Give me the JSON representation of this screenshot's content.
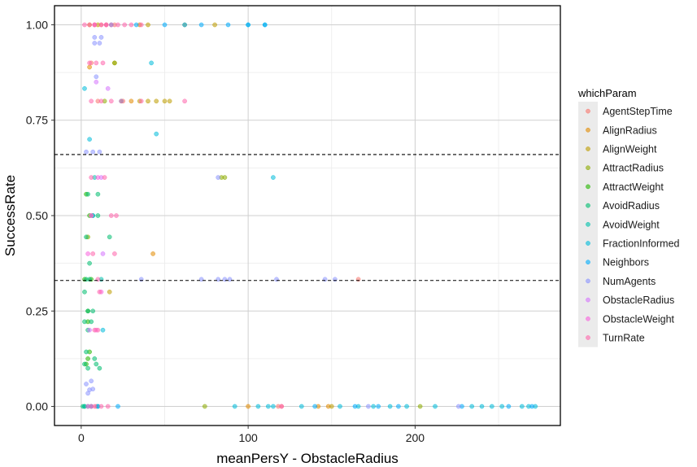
{
  "chart_data": {
    "type": "scatter",
    "xlabel": "meanPersY - ObstacleRadius",
    "ylabel": "SuccessRate",
    "xlim": [
      -16,
      287
    ],
    "ylim": [
      -0.05,
      1.05
    ],
    "x_ticks": [
      0,
      100,
      200
    ],
    "x_tick_labels": [
      "0",
      "100",
      "200"
    ],
    "y_ticks": [
      0,
      0.25,
      0.5,
      0.75,
      1
    ],
    "y_tick_labels": [
      "0.00",
      "0.25",
      "0.50",
      "0.75",
      "1.00"
    ],
    "grid": true,
    "hlines": [
      0.66,
      0.33
    ],
    "hline_style": "dashed",
    "point_opacity": 0.55,
    "legend": {
      "title": "whichParam",
      "position": "right",
      "entries": [
        {
          "name": "AgentStepTime",
          "color": "#F8766D"
        },
        {
          "name": "AlignRadius",
          "color": "#E18A00"
        },
        {
          "name": "AlignWeight",
          "color": "#BE9C00"
        },
        {
          "name": "AttractRadius",
          "color": "#8CAB00"
        },
        {
          "name": "AttractWeight",
          "color": "#24B700"
        },
        {
          "name": "AvoidRadius",
          "color": "#00BE70"
        },
        {
          "name": "AvoidWeight",
          "color": "#00C1AB"
        },
        {
          "name": "FractionInformed",
          "color": "#00BBDA"
        },
        {
          "name": "Neighbors",
          "color": "#00ACFC"
        },
        {
          "name": "NumAgents",
          "color": "#8B93FF"
        },
        {
          "name": "ObstacleRadius",
          "color": "#D575FE"
        },
        {
          "name": "ObstacleWeight",
          "color": "#F962DD"
        },
        {
          "name": "TurnRate",
          "color": "#FF65AC"
        }
      ]
    },
    "series": [
      {
        "name": "AgentStepTime",
        "points": [
          [
            8,
            1.0
          ],
          [
            12,
            1.0
          ],
          [
            20,
            1.0
          ],
          [
            6,
            0.9
          ],
          [
            10,
            0.8
          ],
          [
            25,
            0.8
          ],
          [
            166,
            0.333
          ],
          [
            118,
            0.0
          ],
          [
            120,
            0.0
          ],
          [
            6,
            0.0
          ],
          [
            9,
            0.0
          ]
        ]
      },
      {
        "name": "AlignRadius",
        "points": [
          [
            5,
            1.0
          ],
          [
            15,
            1.0
          ],
          [
            35,
            1.0
          ],
          [
            5,
            0.889
          ],
          [
            30,
            0.8
          ],
          [
            43,
            0.4
          ],
          [
            148,
            0.0
          ],
          [
            142,
            0.0
          ],
          [
            100,
            0.0
          ]
        ]
      },
      {
        "name": "AlignWeight",
        "points": [
          [
            10,
            1.0
          ],
          [
            40,
            1.0
          ],
          [
            62,
            1.0
          ],
          [
            80,
            1.0
          ],
          [
            20,
            0.9
          ],
          [
            35,
            0.8
          ],
          [
            40,
            0.8
          ],
          [
            45,
            0.8
          ],
          [
            50,
            0.8
          ],
          [
            53,
            0.8
          ],
          [
            17,
            0.3
          ],
          [
            150,
            0.0
          ]
        ]
      },
      {
        "name": "AttractRadius",
        "points": [
          [
            20,
            0.9
          ],
          [
            14,
            0.8
          ],
          [
            84,
            0.6
          ],
          [
            86,
            0.6
          ],
          [
            4,
            0.444
          ],
          [
            74,
            0.0
          ],
          [
            203,
            0.0
          ]
        ]
      },
      {
        "name": "AttractWeight",
        "points": [
          [
            3,
            0.556
          ],
          [
            5,
            0.5
          ],
          [
            2,
            0.333
          ],
          [
            6,
            0.333
          ],
          [
            4,
            0.25
          ],
          [
            4,
            0.222
          ],
          [
            3,
            0.111
          ],
          [
            5,
            0.143
          ],
          [
            4,
            0.125
          ]
        ]
      },
      {
        "name": "AvoidRadius",
        "points": [
          [
            4,
            0.556
          ],
          [
            10,
            0.556
          ],
          [
            3,
            0.444
          ],
          [
            17,
            0.444
          ],
          [
            7,
            0.5
          ],
          [
            10,
            0.5
          ],
          [
            5,
            0.375
          ],
          [
            3,
            0.333
          ],
          [
            5,
            0.333
          ],
          [
            2,
            0.3
          ],
          [
            4,
            0.25
          ],
          [
            7,
            0.25
          ],
          [
            2,
            0.222
          ],
          [
            6,
            0.222
          ],
          [
            4,
            0.2
          ],
          [
            3,
            0.143
          ],
          [
            8,
            0.125
          ],
          [
            2,
            0.111
          ],
          [
            9,
            0.111
          ],
          [
            4,
            0.1
          ],
          [
            11,
            0.1
          ],
          [
            2,
            0.0
          ],
          [
            1,
            0.0
          ]
        ]
      },
      {
        "name": "AvoidWeight",
        "points": [
          [
            2,
            0.0
          ],
          [
            6,
            0.0
          ],
          [
            10,
            0.0
          ],
          [
            8,
            0.6
          ],
          [
            12,
            0.333
          ],
          [
            24,
            0.8
          ]
        ]
      },
      {
        "name": "FractionInformed",
        "points": [
          [
            110,
            1.0
          ],
          [
            100,
            1.0
          ],
          [
            42,
            0.9
          ],
          [
            45,
            0.714
          ],
          [
            115,
            0.6
          ],
          [
            5,
            0.7
          ],
          [
            2,
            0.833
          ],
          [
            7,
            0.5
          ],
          [
            13,
            0.2
          ],
          [
            92,
            0.0
          ],
          [
            106,
            0.0
          ],
          [
            132,
            0.0
          ],
          [
            155,
            0.0
          ],
          [
            166,
            0.0
          ],
          [
            175,
            0.0
          ],
          [
            185,
            0.0
          ],
          [
            195,
            0.0
          ],
          [
            212,
            0.0
          ],
          [
            234,
            0.0
          ],
          [
            240,
            0.0
          ],
          [
            246,
            0.0
          ],
          [
            252,
            0.0
          ],
          [
            264,
            0.0
          ],
          [
            268,
            0.0
          ],
          [
            272,
            0.0
          ],
          [
            115,
            0.0
          ],
          [
            112,
            0.0
          ]
        ]
      },
      {
        "name": "Neighbors",
        "points": [
          [
            18,
            1.0
          ],
          [
            33,
            1.0
          ],
          [
            50,
            1.0
          ],
          [
            62,
            1.0
          ],
          [
            72,
            1.0
          ],
          [
            88,
            1.0
          ],
          [
            100,
            1.0
          ],
          [
            110,
            1.0
          ],
          [
            4,
            0.0
          ],
          [
            10,
            0.0
          ],
          [
            22,
            0.0
          ],
          [
            140,
            0.0
          ],
          [
            164,
            0.0
          ],
          [
            178,
            0.0
          ],
          [
            190,
            0.0
          ],
          [
            228,
            0.0
          ],
          [
            256,
            0.0
          ],
          [
            270,
            0.0
          ]
        ]
      },
      {
        "name": "NumAgents",
        "points": [
          [
            8,
            0.967
          ],
          [
            12,
            0.967
          ],
          [
            8,
            0.952
          ],
          [
            11,
            0.952
          ],
          [
            9,
            0.864
          ],
          [
            3,
            0.667
          ],
          [
            7,
            0.667
          ],
          [
            11,
            0.667
          ],
          [
            6,
            0.0667
          ],
          [
            3,
            0.0588
          ],
          [
            5,
            0.0435
          ],
          [
            7,
            0.0455
          ],
          [
            4,
            0.0345
          ],
          [
            36,
            0.333
          ],
          [
            72,
            0.333
          ],
          [
            82,
            0.333
          ],
          [
            86,
            0.333
          ],
          [
            89,
            0.333
          ],
          [
            117,
            0.333
          ],
          [
            146,
            0.333
          ],
          [
            152,
            0.333
          ],
          [
            226,
            0.0
          ],
          [
            172,
            0.0
          ],
          [
            82,
            0.6
          ]
        ]
      },
      {
        "name": "ObstacleRadius",
        "points": [
          [
            9,
            0.85
          ],
          [
            16,
            0.833
          ],
          [
            12,
            0.6
          ],
          [
            6,
            0.5
          ],
          [
            13,
            0.4
          ],
          [
            5,
            0.2
          ]
        ]
      },
      {
        "name": "ObstacleWeight",
        "points": [
          [
            8,
            1.0
          ],
          [
            15,
            1.0
          ],
          [
            10,
            0.6
          ],
          [
            4,
            0.4
          ],
          [
            12,
            0.3
          ],
          [
            9,
            0.2
          ],
          [
            6,
            0.0
          ]
        ]
      },
      {
        "name": "TurnRate",
        "points": [
          [
            2,
            1.0
          ],
          [
            5,
            1.0
          ],
          [
            8,
            1.0
          ],
          [
            12,
            1.0
          ],
          [
            15,
            1.0
          ],
          [
            18,
            1.0
          ],
          [
            22,
            1.0
          ],
          [
            26,
            1.0
          ],
          [
            30,
            1.0
          ],
          [
            36,
            1.0
          ],
          [
            5,
            0.9
          ],
          [
            9,
            0.9
          ],
          [
            13,
            0.9
          ],
          [
            6,
            0.8
          ],
          [
            12,
            0.8
          ],
          [
            18,
            0.8
          ],
          [
            24,
            0.8
          ],
          [
            36,
            0.8
          ],
          [
            62,
            0.8
          ],
          [
            6,
            0.6
          ],
          [
            14,
            0.6
          ],
          [
            6,
            0.5
          ],
          [
            18,
            0.5
          ],
          [
            21,
            0.5
          ],
          [
            7,
            0.4
          ],
          [
            20,
            0.4
          ],
          [
            10,
            0.333
          ],
          [
            11,
            0.3
          ],
          [
            8,
            0.2
          ],
          [
            10,
            0.2
          ],
          [
            4,
            0.0
          ],
          [
            8,
            0.0
          ],
          [
            12,
            0.0
          ],
          [
            16,
            0.0
          ],
          [
            120,
            0.0
          ]
        ]
      }
    ]
  }
}
